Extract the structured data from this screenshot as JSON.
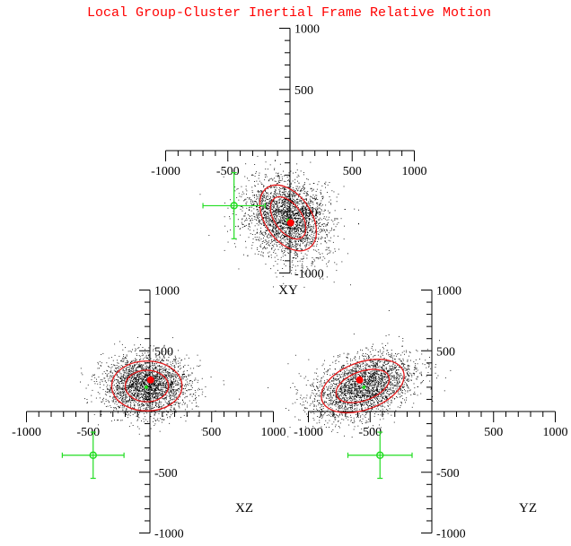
{
  "title": "Local Group-Cluster Inertial Frame Relative Motion",
  "colors": {
    "title": "#ff0000",
    "axes": "#000000",
    "points": "#000000",
    "ellipse": "#e31a1c",
    "observed_marker": "#ff0000",
    "model_marker": "#22dd22"
  },
  "chart_data": [
    {
      "type": "scatter",
      "panel": "XY",
      "xlim": [
        -1000,
        1000
      ],
      "ylim": [
        -1000,
        1000
      ],
      "x_ticks": [
        -1000,
        -500,
        0,
        500,
        1000
      ],
      "y_ticks": [
        -1000,
        -500,
        0,
        500,
        1000
      ],
      "x_tick_labels": [
        "-1000",
        "-500",
        "500",
        "1000"
      ],
      "y_tick_labels": [
        "1000",
        "500",
        "-500",
        "-1000"
      ],
      "label": "XY",
      "cloud": {
        "center": [
          -30,
          -550
        ],
        "spread": [
          150,
          185
        ],
        "tilt_deg": 50,
        "n_points": 2600
      },
      "ellipses": [
        {
          "center": [
            -15,
            -550
          ],
          "semi_axes": [
            185,
            300
          ],
          "angle_deg": 35
        },
        {
          "center": [
            -15,
            -550
          ],
          "semi_axes": [
            110,
            195
          ],
          "angle_deg": 35
        }
      ],
      "observed_point": {
        "x": 5,
        "y": -590
      },
      "model_point": {
        "x": -15,
        "y": -570
      },
      "green_point": {
        "x": -450,
        "y": -450,
        "xerr": 250,
        "yerr": 270
      }
    },
    {
      "type": "scatter",
      "panel": "XZ",
      "xlim": [
        -1000,
        1000
      ],
      "ylim": [
        -1000,
        1000
      ],
      "x_ticks": [
        -1000,
        -500,
        0,
        500,
        1000
      ],
      "y_ticks": [
        -1000,
        -500,
        0,
        500,
        1000
      ],
      "x_tick_labels": [
        "-1000",
        "-500",
        "500",
        "1000"
      ],
      "y_tick_labels": [
        "1000",
        "500",
        "-500",
        "-1000"
      ],
      "label": "XZ",
      "cloud": {
        "center": [
          -30,
          215
        ],
        "spread": [
          175,
          120
        ],
        "tilt_deg": 0,
        "n_points": 2600
      },
      "ellipses": [
        {
          "center": [
            -25,
            210
          ],
          "semi_axes": [
            285,
            205
          ],
          "angle_deg": 0
        },
        {
          "center": [
            -25,
            210
          ],
          "semi_axes": [
            175,
            130
          ],
          "angle_deg": 0
        }
      ],
      "observed_point": {
        "x": 5,
        "y": 260
      },
      "model_point": {
        "x": -30,
        "y": 200
      },
      "green_point": {
        "x": -460,
        "y": -360,
        "xerr": 250,
        "yerr": 190
      }
    },
    {
      "type": "scatter",
      "panel": "YZ",
      "xlim": [
        -1000,
        1000
      ],
      "ylim": [
        -1000,
        1000
      ],
      "x_ticks": [
        -1000,
        -500,
        0,
        500,
        1000
      ],
      "y_ticks": [
        -1000,
        -500,
        0,
        500,
        1000
      ],
      "x_tick_labels": [
        "-1000",
        "-500",
        "500",
        "1000"
      ],
      "y_tick_labels": [
        "1000",
        "500",
        "-500",
        "-1000"
      ],
      "label": "YZ",
      "cloud": {
        "center": [
          -560,
          210
        ],
        "spread": [
          215,
          120
        ],
        "tilt_deg": 20,
        "n_points": 2600
      },
      "ellipses": [
        {
          "center": [
            -560,
            210
          ],
          "semi_axes": [
            350,
            195
          ],
          "angle_deg": 20
        },
        {
          "center": [
            -560,
            210
          ],
          "semi_axes": [
            225,
            120
          ],
          "angle_deg": 20
        }
      ],
      "observed_point": {
        "x": -585,
        "y": 260
      },
      "model_point": {
        "x": -550,
        "y": 200
      },
      "green_point": {
        "x": -420,
        "y": -360,
        "xerr": 260,
        "yerr": 190
      }
    }
  ]
}
